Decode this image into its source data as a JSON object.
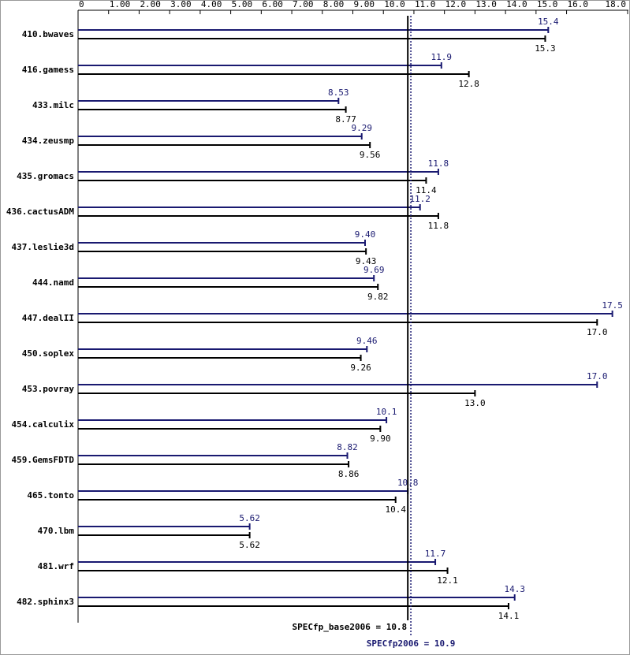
{
  "chart_data": {
    "type": "bar",
    "orientation": "horizontal",
    "categories": [
      "410.bwaves",
      "416.gamess",
      "433.milc",
      "434.zeusmp",
      "435.gromacs",
      "436.cactusADM",
      "437.leslie3d",
      "444.namd",
      "447.dealII",
      "450.soplex",
      "453.povray",
      "454.calculix",
      "459.GemsFDTD",
      "465.tonto",
      "470.lbm",
      "481.wrf",
      "482.sphinx3"
    ],
    "series": [
      {
        "color": "#191970",
        "values": [
          15.4,
          11.9,
          8.53,
          9.29,
          11.8,
          11.2,
          9.4,
          9.69,
          17.5,
          9.46,
          17.0,
          10.1,
          8.82,
          10.8,
          5.62,
          11.7,
          14.3
        ],
        "value_labels": [
          "15.4",
          "11.9",
          "8.53",
          "9.29",
          "11.8",
          "11.2",
          "9.40",
          "9.69",
          "17.5",
          "9.46",
          "17.0",
          "10.1",
          "8.82",
          "10.8",
          "5.62",
          "11.7",
          "14.3"
        ]
      },
      {
        "color": "#000000",
        "values": [
          15.3,
          12.8,
          8.77,
          9.56,
          11.4,
          11.8,
          9.43,
          9.82,
          17.0,
          9.26,
          13.0,
          9.9,
          8.86,
          10.4,
          5.62,
          12.1,
          14.1
        ],
        "value_labels": [
          "15.3",
          "12.8",
          "8.77",
          "9.56",
          "11.4",
          "11.8",
          "9.43",
          "9.82",
          "17.0",
          "9.26",
          "13.0",
          "9.90",
          "8.86",
          "10.4",
          "5.62",
          "12.1",
          "14.1"
        ]
      }
    ],
    "xlim": [
      0,
      18
    ],
    "xticks": [
      0,
      {
        "value": 1,
        "label": "1.00"
      },
      {
        "value": 2,
        "label": "2.00"
      },
      {
        "value": 3,
        "label": "3.00"
      },
      {
        "value": 4,
        "label": "4.00"
      },
      {
        "value": 5,
        "label": "5.00"
      },
      {
        "value": 6,
        "label": "6.00"
      },
      {
        "value": 7,
        "label": "7.00"
      },
      {
        "value": 8,
        "label": "8.00"
      },
      {
        "value": 9,
        "label": "9.00"
      },
      {
        "value": 10,
        "label": "10.0"
      },
      {
        "value": 11,
        "label": "11.0"
      },
      {
        "value": 12,
        "label": "12.0"
      },
      {
        "value": 13,
        "label": "13.0"
      },
      {
        "value": 14,
        "label": "14.0"
      },
      {
        "value": 15,
        "label": "15.0"
      },
      {
        "value": 16,
        "label": "16.0"
      },
      {
        "value": 18,
        "label": "18.0"
      }
    ],
    "references": [
      {
        "label": "SPECfp_base2006 = 10.8",
        "value": 10.8,
        "color": "#000000",
        "style": "solid"
      },
      {
        "label": "SPECfp2006 = 10.9",
        "value": 10.9,
        "color": "#191970",
        "style": "dotted"
      }
    ]
  }
}
